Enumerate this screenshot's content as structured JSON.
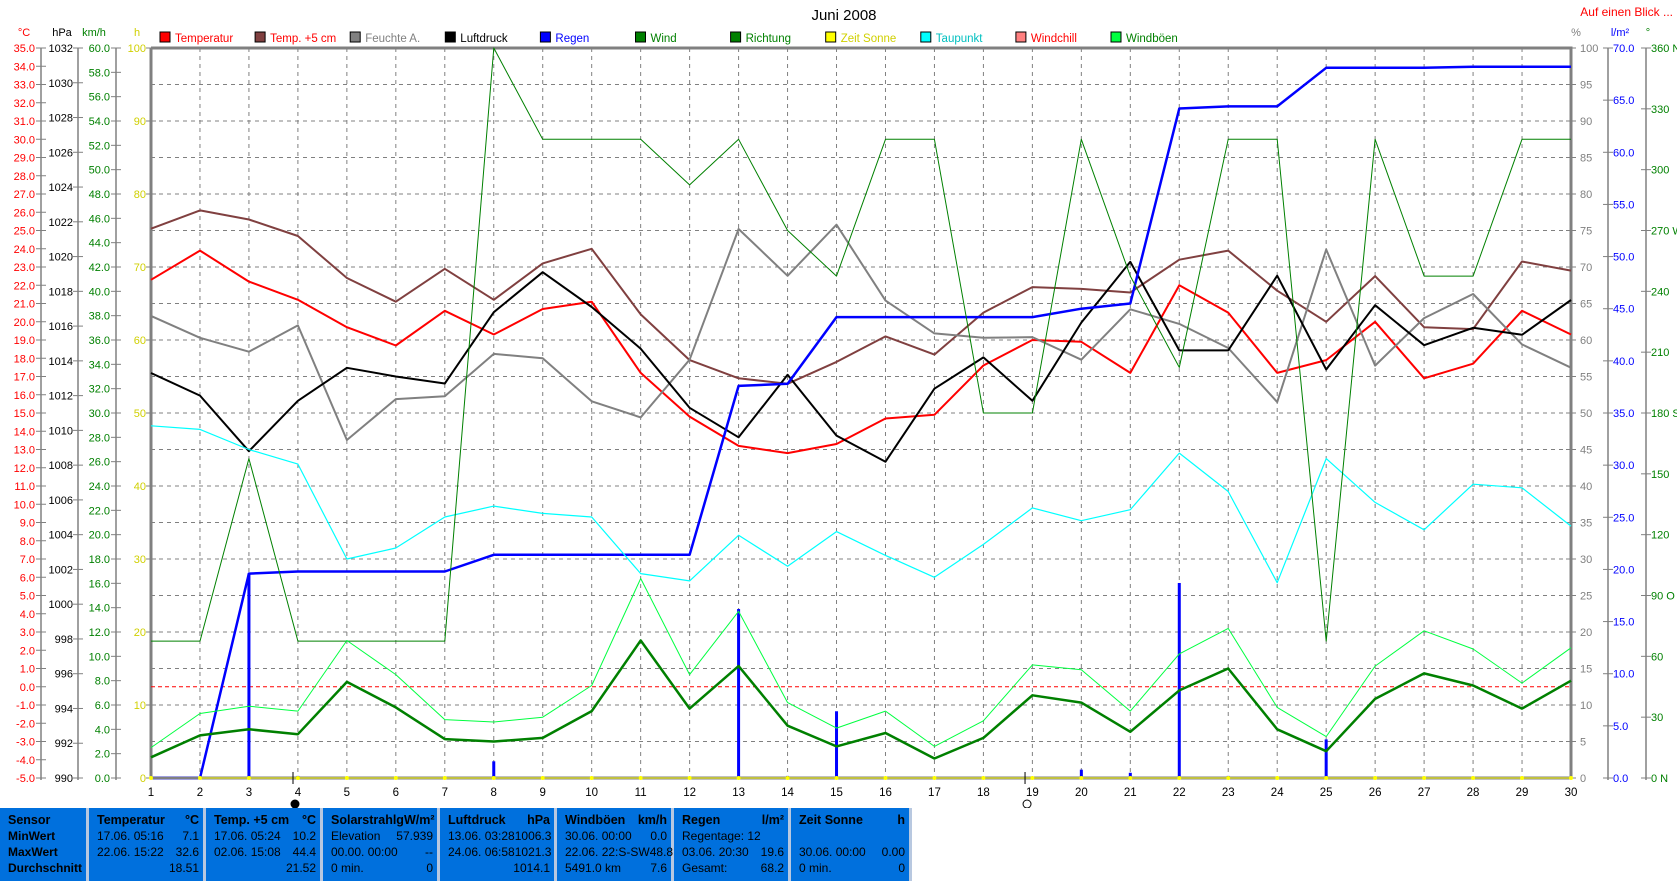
{
  "title": "Juni 2008",
  "link": "Auf einen Blick ...",
  "legend": [
    {
      "label": "Temperatur",
      "color": "#ff0000",
      "text_color": "#ff0000"
    },
    {
      "label": "Temp. +5 cm",
      "color": "#804040",
      "text_color": "#ff0000"
    },
    {
      "label": "Feuchte A.",
      "color": "#808080",
      "text_color": "#808080"
    },
    {
      "label": "Luftdruck",
      "color": "#000000",
      "text_color": "#000000"
    },
    {
      "label": "Regen",
      "color": "#0000ff",
      "text_color": "#0000ff"
    },
    {
      "label": "Wind",
      "color": "#008000",
      "text_color": "#008000"
    },
    {
      "label": "Richtung",
      "color": "#008000",
      "text_color": "#008000"
    },
    {
      "label": "Zeit Sonne",
      "color": "#ffff00",
      "text_color": "#d0d000"
    },
    {
      "label": "Taupunkt",
      "color": "#00ffff",
      "text_color": "#00c0c0"
    },
    {
      "label": "Windchill",
      "color": "#ff8080",
      "text_color": "#ff0000"
    },
    {
      "label": "Windböen",
      "color": "#00ff40",
      "text_color": "#008000"
    }
  ],
  "chart_data": {
    "type": "line",
    "title": "Juni 2008",
    "grid": true,
    "x": [
      1,
      2,
      3,
      4,
      5,
      6,
      7,
      8,
      9,
      10,
      11,
      12,
      13,
      14,
      15,
      16,
      17,
      18,
      19,
      20,
      21,
      22,
      23,
      24,
      25,
      26,
      27,
      28,
      29,
      30
    ],
    "x_tick_labels": [
      "1",
      "2",
      "3",
      "4",
      "5",
      "6",
      "7",
      "8",
      "9",
      "10",
      "11",
      "12",
      "13",
      "14",
      "15",
      "16",
      "17",
      "18",
      "19",
      "20",
      "21",
      "22",
      "23",
      "24",
      "25",
      "26",
      "27",
      "28",
      "29",
      "30"
    ],
    "axes": {
      "temp": {
        "unit": "°C",
        "range": [
          -5,
          35
        ],
        "color": "#ff0000",
        "ticks": [
          "35.0",
          "34.0",
          "33.0",
          "32.0",
          "31.0",
          "30.0",
          "29.0",
          "28.0",
          "27.0",
          "26.0",
          "25.0",
          "24.0",
          "23.0",
          "22.0",
          "21.0",
          "20.0",
          "19.0",
          "18.0",
          "17.0",
          "16.0",
          "15.0",
          "14.0",
          "13.0",
          "12.0",
          "11.0",
          "10.0",
          "9.0",
          "8.0",
          "7.0",
          "6.0",
          "5.0",
          "4.0",
          "3.0",
          "2.0",
          "1.0",
          "0.0",
          "-1.0",
          "-2.0",
          "-3.0",
          "-4.0",
          "-5.0"
        ]
      },
      "pressure": {
        "unit": "hPa",
        "range": [
          990,
          1032
        ],
        "color": "#000000",
        "ticks": [
          "1032",
          "1030",
          "1028",
          "1026",
          "1024",
          "1022",
          "1020",
          "1018",
          "1016",
          "1014",
          "1012",
          "1010",
          "1008",
          "1006",
          "1004",
          "1002",
          "1000",
          "998",
          "996",
          "994",
          "992",
          "990"
        ]
      },
      "wind": {
        "unit": "km/h",
        "range": [
          0,
          60
        ],
        "color": "#008000",
        "ticks": [
          "60.0",
          "58.0",
          "56.0",
          "54.0",
          "52.0",
          "50.0",
          "48.0",
          "46.0",
          "44.0",
          "42.0",
          "40.0",
          "38.0",
          "36.0",
          "34.0",
          "32.0",
          "30.0",
          "28.0",
          "26.0",
          "24.0",
          "22.0",
          "20.0",
          "18.0",
          "16.0",
          "14.0",
          "12.0",
          "10.0",
          "8.0",
          "6.0",
          "4.0",
          "2.0",
          "0.0"
        ]
      },
      "sun": {
        "unit": "h",
        "range": [
          0,
          100
        ],
        "color": "#d0d000",
        "ticks": [
          "100",
          "90",
          "80",
          "70",
          "60",
          "50",
          "40",
          "30",
          "20",
          "10",
          "0"
        ]
      },
      "humidity": {
        "unit": "%",
        "range": [
          0,
          100
        ],
        "color": "#808080",
        "ticks": [
          "100",
          "95",
          "90",
          "85",
          "80",
          "75",
          "70",
          "65",
          "60",
          "55",
          "50",
          "45",
          "40",
          "35",
          "30",
          "25",
          "20",
          "15",
          "10",
          "5",
          "0"
        ]
      },
      "rain": {
        "unit": "l/m²",
        "range": [
          0,
          70
        ],
        "color": "#0000ff",
        "ticks": [
          "70.0",
          "65.0",
          "60.0",
          "55.0",
          "50.0",
          "45.0",
          "40.0",
          "35.0",
          "30.0",
          "25.0",
          "20.0",
          "15.0",
          "10.0",
          "5.0",
          "0.0"
        ]
      },
      "direction": {
        "unit": "°",
        "range": [
          0,
          360
        ],
        "color": "#008000",
        "ticks": [
          "360 N",
          "330",
          "300",
          "270 W",
          "240",
          "210",
          "180 S",
          "150",
          "120",
          "90  O",
          "60",
          "30",
          "0   N"
        ]
      }
    },
    "series": [
      {
        "name": "Temperatur",
        "axis": "temp",
        "color": "#ff0000",
        "width": 2,
        "values": [
          22.3,
          23.9,
          22.2,
          21.2,
          19.7,
          18.7,
          20.6,
          19.3,
          20.7,
          21.1,
          17.2,
          14.8,
          13.2,
          12.8,
          13.3,
          14.7,
          14.9,
          17.6,
          19.0,
          18.9,
          17.2,
          22.0,
          20.5,
          17.2,
          17.9,
          20.0,
          16.9,
          17.7,
          20.6,
          19.3
        ]
      },
      {
        "name": "Temp. +5 cm",
        "axis": "temp",
        "color": "#804040",
        "width": 2,
        "values": [
          25.1,
          26.1,
          25.6,
          24.7,
          22.4,
          21.1,
          22.9,
          21.2,
          23.2,
          24.0,
          20.4,
          17.9,
          16.9,
          16.6,
          17.8,
          19.2,
          18.2,
          20.5,
          21.9,
          21.8,
          21.6,
          23.4,
          23.9,
          21.7,
          20.0,
          22.5,
          19.7,
          19.6,
          23.3,
          22.8
        ]
      },
      {
        "name": "Feuchte A.",
        "axis": "humidity",
        "color": "#808080",
        "width": 2,
        "values": [
          63.3,
          60.3,
          58.4,
          62.0,
          46.3,
          51.9,
          52.3,
          58.1,
          57.5,
          51.6,
          49.4,
          57.3,
          75.2,
          68.8,
          75.8,
          65.4,
          60.9,
          60.3,
          60.4,
          57.3,
          64.2,
          62.2,
          58.9,
          51.5,
          72.4,
          56.5,
          63.0,
          66.3,
          59.4,
          56.2
        ]
      },
      {
        "name": "Luftdruck",
        "axis": "pressure",
        "color": "#000000",
        "width": 2,
        "values": [
          1013.3,
          1012.0,
          1008.8,
          1011.7,
          1013.6,
          1013.1,
          1012.7,
          1016.8,
          1019.1,
          1017.1,
          1014.7,
          1011.3,
          1009.6,
          1013.2,
          1009.7,
          1008.2,
          1012.4,
          1014.2,
          1011.7,
          1016.2,
          1019.7,
          1014.6,
          1014.6,
          1018.9,
          1013.5,
          1017.2,
          1014.9,
          1015.9,
          1015.5,
          1017.5
        ]
      },
      {
        "name": "Regen",
        "axis": "rain",
        "color": "#0000ff",
        "width": 2.5,
        "values": [
          0.0,
          0.0,
          19.6,
          19.8,
          19.8,
          19.8,
          19.8,
          21.4,
          21.4,
          21.4,
          21.4,
          21.4,
          37.6,
          37.8,
          44.2,
          44.2,
          44.2,
          44.2,
          44.2,
          45.0,
          45.5,
          64.2,
          64.4,
          64.4,
          68.1,
          68.1,
          68.1,
          68.2,
          68.2,
          68.2
        ]
      },
      {
        "name": "Taupunkt",
        "axis": "temp",
        "color": "#00ffff",
        "width": 1.2,
        "values": [
          14.3,
          14.1,
          13.0,
          12.2,
          7.0,
          7.6,
          9.3,
          9.9,
          9.5,
          9.3,
          6.2,
          5.8,
          8.3,
          6.6,
          8.5,
          7.2,
          6.0,
          7.8,
          9.8,
          9.1,
          9.7,
          12.8,
          10.7,
          5.7,
          12.5,
          10.1,
          8.6,
          11.1,
          10.9,
          8.8
        ]
      },
      {
        "name": "Richtung",
        "axis": "direction",
        "color": "#008000",
        "width": 1,
        "values": [
          67.5,
          67.5,
          157.5,
          67.5,
          67.5,
          67.5,
          67.5,
          360,
          315,
          315,
          315,
          292.5,
          315,
          270,
          247.5,
          315,
          315,
          180,
          180,
          315,
          247.5,
          202.5,
          315,
          315,
          67.5,
          315,
          247.5,
          247.5,
          315,
          315
        ]
      },
      {
        "name": "Windböen",
        "axis": "wind",
        "color": "#00ff40",
        "width": 1,
        "values": [
          2.5,
          5.3,
          5.9,
          5.5,
          11.3,
          8.5,
          4.8,
          4.6,
          5.0,
          7.6,
          16.4,
          8.5,
          13.7,
          6.2,
          4.1,
          5.5,
          2.6,
          4.7,
          9.3,
          8.9,
          5.5,
          10.2,
          12.3,
          5.8,
          3.4,
          9.2,
          12.1,
          10.6,
          7.8,
          10.7
        ]
      },
      {
        "name": "Wind",
        "axis": "wind",
        "color": "#008000",
        "width": 2.5,
        "values": [
          1.7,
          3.5,
          4.0,
          3.6,
          7.9,
          5.8,
          3.2,
          3.0,
          3.3,
          5.5,
          11.3,
          5.7,
          9.2,
          4.3,
          2.6,
          3.7,
          1.6,
          3.3,
          6.8,
          6.2,
          3.8,
          7.2,
          9.0,
          4.0,
          2.2,
          6.5,
          8.6,
          7.6,
          5.7,
          8.0
        ]
      },
      {
        "name": "Zeit Sonne",
        "axis": "sun",
        "color": "#ffff00",
        "width": 1,
        "values": [
          0,
          0,
          0,
          0,
          0,
          0,
          0,
          0,
          0,
          0,
          0,
          0,
          0,
          0,
          0,
          0,
          0,
          0,
          0,
          0,
          0,
          0,
          0,
          0,
          0,
          0,
          0,
          0,
          0,
          0
        ]
      }
    ],
    "daily_rain": {
      "axis": "rain",
      "color": "#0000ff",
      "values": [
        0,
        0,
        19.6,
        0.2,
        0,
        0,
        0,
        1.6,
        0,
        0,
        0,
        0,
        16.2,
        0.2,
        6.4,
        0,
        0,
        0,
        0,
        0.8,
        0.5,
        18.7,
        0.2,
        0,
        3.7,
        0,
        0,
        0,
        0,
        0
      ]
    },
    "reference_line": {
      "axis": "temp",
      "value": 0.0,
      "color": "#ff0000"
    },
    "moon_phases": [
      {
        "day": 3.9,
        "phase": "new-moon"
      },
      {
        "day": 18.85,
        "phase": "full-moon"
      }
    ]
  },
  "table": {
    "columns": [
      {
        "header": "Sensor",
        "unit": "",
        "rows": [
          [
            "MinWert",
            ""
          ],
          [
            "MaxWert",
            ""
          ],
          [
            "Durchschnitt",
            ""
          ]
        ]
      },
      {
        "header": "Temperatur",
        "unit": "°C",
        "rows": [
          [
            "17.06.  05:16",
            "7.1"
          ],
          [
            "22.06.  15:22",
            "32.6"
          ],
          [
            "",
            "18.51"
          ]
        ]
      },
      {
        "header": "Temp. +5 cm",
        "unit": "°C",
        "rows": [
          [
            "17.06.  05:24",
            "10.2"
          ],
          [
            "02.06.  15:08",
            "44.4"
          ],
          [
            "",
            "21.52"
          ]
        ]
      },
      {
        "header": "Solarstrahlg",
        "unit": "W/m²",
        "rows": [
          [
            "Elevation",
            "57.939"
          ],
          [
            "00.00.  00:00",
            "--"
          ],
          [
            "0 min.",
            "0"
          ]
        ]
      },
      {
        "header": "Luftdruck",
        "unit": "hPa",
        "rows": [
          [
            "13.06.  03:28",
            "1006.3"
          ],
          [
            "24.06.  06:58",
            "1021.3"
          ],
          [
            "",
            "1014.1"
          ]
        ]
      },
      {
        "header": "Windböen",
        "unit": "km/h",
        "rows": [
          [
            "30.06.  00:00",
            "0.0"
          ],
          [
            "22.06.  22:S-SW",
            "48.8"
          ],
          [
            "5491.0 km",
            "7.6"
          ]
        ]
      },
      {
        "header": "Regen",
        "unit": "l/m²",
        "rows": [
          [
            "Regentage: 12",
            ""
          ],
          [
            "03.06.  20:30",
            "19.6"
          ],
          [
            "Gesamt:",
            "68.2"
          ]
        ]
      },
      {
        "header": "Zeit Sonne",
        "unit": "h",
        "rows": [
          [
            "",
            ""
          ],
          [
            "30.06.  00:00",
            "0.00"
          ],
          [
            "0 min.",
            "0"
          ]
        ]
      }
    ]
  }
}
